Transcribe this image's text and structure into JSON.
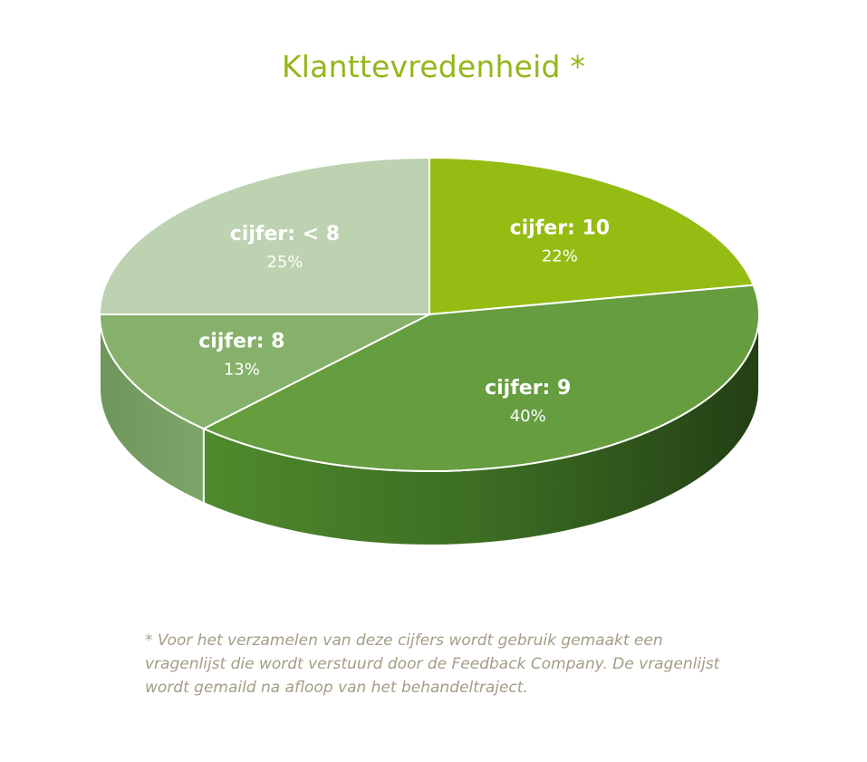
{
  "chart_data": {
    "type": "pie",
    "title": "Klanttevredenheid *",
    "slices": [
      {
        "label": "cijfer: 10",
        "value": 22,
        "value_label": "22%",
        "color": "#95bc12"
      },
      {
        "label": "cijfer: 9",
        "value": 40,
        "value_label": "40%",
        "color": "#659d3f"
      },
      {
        "label": "cijfer: 8",
        "value": 13,
        "value_label": "13%",
        "color": "#86b16a"
      },
      {
        "label": "cijfer: < 8",
        "value": 25,
        "value_label": "25%",
        "color": "#bcd2b0"
      }
    ],
    "style": "3d"
  },
  "footnote": {
    "lines": [
      "* Voor het verzamelen van deze cijfers wordt gebruik gemaakt een",
      "vragenlijst die wordt verstuurd door de Feedback Company. De vragenlijst",
      "wordt gemaild na afloop van het behandeltraject."
    ]
  },
  "colors": {
    "title": "#93b71a",
    "footnote": "#a59c87",
    "label": "#ffffff"
  }
}
